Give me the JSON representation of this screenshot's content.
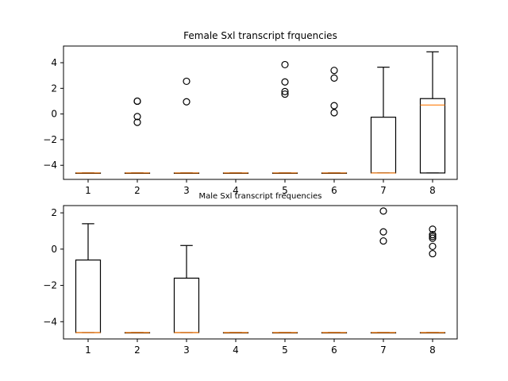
{
  "chart_data": [
    {
      "type": "box",
      "title": "Female Sxl transcript frquencies",
      "xlabel": "",
      "ylabel": "",
      "categories": [
        "1",
        "2",
        "3",
        "4",
        "5",
        "6",
        "7",
        "8"
      ],
      "ylim": [
        -5.1,
        5.3
      ],
      "yticks": [
        -4,
        -2,
        0,
        2,
        4
      ],
      "grid": false,
      "boxes": [
        {
          "whislo": -4.6,
          "q1": -4.6,
          "med": -4.6,
          "q3": -4.6,
          "whishi": -4.6,
          "fliers": []
        },
        {
          "whislo": -4.6,
          "q1": -4.6,
          "med": -4.6,
          "q3": -4.6,
          "whishi": -4.6,
          "fliers": [
            1.0,
            1.0,
            -0.2,
            -0.65
          ]
        },
        {
          "whislo": -4.6,
          "q1": -4.6,
          "med": -4.6,
          "q3": -4.6,
          "whishi": -4.6,
          "fliers": [
            2.55,
            0.95
          ]
        },
        {
          "whislo": -4.6,
          "q1": -4.6,
          "med": -4.6,
          "q3": -4.6,
          "whishi": -4.6,
          "fliers": []
        },
        {
          "whislo": -4.6,
          "q1": -4.6,
          "med": -4.6,
          "q3": -4.6,
          "whishi": -4.6,
          "fliers": [
            3.85,
            2.5,
            1.75,
            1.55
          ]
        },
        {
          "whislo": -4.6,
          "q1": -4.6,
          "med": -4.6,
          "q3": -4.6,
          "whishi": -4.6,
          "fliers": [
            3.4,
            2.8,
            0.65,
            0.1
          ]
        },
        {
          "whislo": -4.6,
          "q1": -4.6,
          "med": -4.6,
          "q3": -0.25,
          "whishi": 3.65,
          "fliers": []
        },
        {
          "whislo": -4.6,
          "q1": -4.6,
          "med": 0.7,
          "q3": 1.2,
          "whishi": 4.85,
          "fliers": []
        }
      ]
    },
    {
      "type": "box",
      "title": "Male Sxl transcript frequencies",
      "xlabel": "",
      "ylabel": "",
      "categories": [
        "1",
        "2",
        "3",
        "4",
        "5",
        "6",
        "7",
        "8"
      ],
      "ylim": [
        -4.95,
        2.4
      ],
      "yticks": [
        -4,
        -2,
        0,
        2
      ],
      "grid": false,
      "boxes": [
        {
          "whislo": -4.6,
          "q1": -4.6,
          "med": -4.6,
          "q3": -0.6,
          "whishi": 1.4,
          "fliers": []
        },
        {
          "whislo": -4.6,
          "q1": -4.6,
          "med": -4.6,
          "q3": -4.6,
          "whishi": -4.6,
          "fliers": []
        },
        {
          "whislo": -4.6,
          "q1": -4.6,
          "med": -4.6,
          "q3": -1.6,
          "whishi": 0.2,
          "fliers": []
        },
        {
          "whislo": -4.6,
          "q1": -4.6,
          "med": -4.6,
          "q3": -4.6,
          "whishi": -4.6,
          "fliers": []
        },
        {
          "whislo": -4.6,
          "q1": -4.6,
          "med": -4.6,
          "q3": -4.6,
          "whishi": -4.6,
          "fliers": []
        },
        {
          "whislo": -4.6,
          "q1": -4.6,
          "med": -4.6,
          "q3": -4.6,
          "whishi": -4.6,
          "fliers": []
        },
        {
          "whislo": -4.6,
          "q1": -4.6,
          "med": -4.6,
          "q3": -4.6,
          "whishi": -4.6,
          "fliers": [
            2.1,
            0.95,
            0.45
          ]
        },
        {
          "whislo": -4.6,
          "q1": -4.6,
          "med": -4.6,
          "q3": -4.6,
          "whishi": -4.6,
          "fliers": [
            1.1,
            0.8,
            0.7,
            0.6,
            0.15,
            -0.25
          ]
        }
      ]
    }
  ],
  "colors": {
    "box": "#000000",
    "median": "#ff7f0e",
    "flier_edge": "#000000",
    "background": "#ffffff"
  }
}
